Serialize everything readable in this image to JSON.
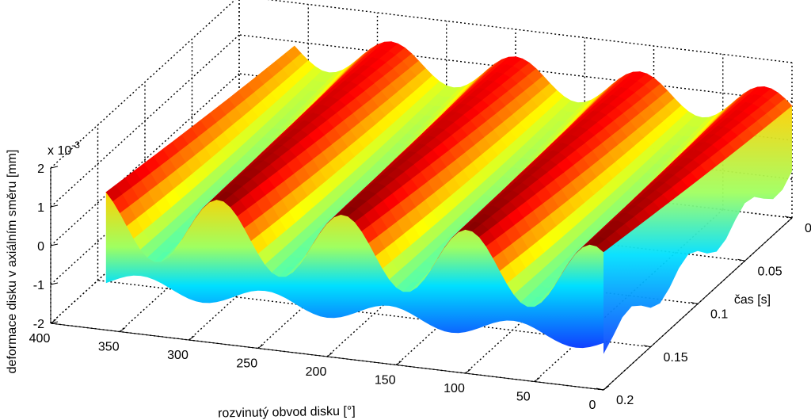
{
  "chart_data": {
    "type": "surface",
    "xlabel": "rozvinutý obvod disku [°]",
    "ylabel": "čas [s]",
    "zlabel": "deformace disku v axiálním směru [mm]",
    "z_multiplier": "x 10",
    "z_multiplier_exp": "-3",
    "xlim": [
      0,
      400
    ],
    "ylim": [
      0,
      0.2
    ],
    "zlim": [
      -2,
      2
    ],
    "x_ticks": [
      "0",
      "50",
      "100",
      "150",
      "200",
      "250",
      "300",
      "350",
      "400"
    ],
    "y_ticks": [
      "0",
      "0.05",
      "0.1",
      "0.15",
      "0.2"
    ],
    "z_ticks": [
      "-2",
      "-1",
      "0",
      "1",
      "2"
    ],
    "x_tick_values": [
      0,
      50,
      100,
      150,
      200,
      250,
      300,
      350,
      400
    ],
    "y_tick_values": [
      0,
      0.05,
      0.1,
      0.15,
      0.2
    ],
    "z_tick_values": [
      -2,
      -1,
      0,
      1,
      2
    ],
    "surface": {
      "x_range": [
        0,
        360
      ],
      "y_range": [
        0,
        0.2
      ],
      "wave_count": 4,
      "mean_deformation": 0.8,
      "amplitude": 0.9,
      "colormap": "jet"
    },
    "grid": true
  }
}
